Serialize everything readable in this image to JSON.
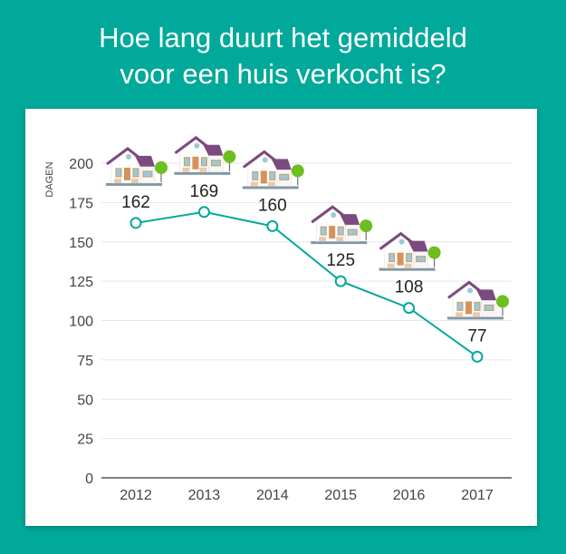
{
  "title_line1": "Hoe lang duurt het gemiddeld",
  "title_line2": "voor een huis verkocht is?",
  "colors": {
    "background": "#00a99a",
    "line": "#00a99a",
    "roof": "#7b4a7e",
    "tree": "#6cbf1f"
  },
  "chart_data": {
    "type": "line",
    "title": "Hoe lang duurt het gemiddeld voor een huis verkocht is?",
    "ylabel": "DAGEN",
    "xlabel": "",
    "categories": [
      "2012",
      "2013",
      "2014",
      "2015",
      "2016",
      "2017"
    ],
    "values": [
      162,
      169,
      160,
      125,
      108,
      77
    ],
    "data_labels": [
      "162",
      "169",
      "160",
      "125",
      "108",
      "77"
    ],
    "ylim": [
      0,
      200
    ],
    "yticks": [
      "0",
      "25",
      "50",
      "75",
      "100",
      "125",
      "150",
      "175",
      "200"
    ],
    "grid": true,
    "markers": "hollow-circle",
    "point_icon": "house-icon"
  }
}
